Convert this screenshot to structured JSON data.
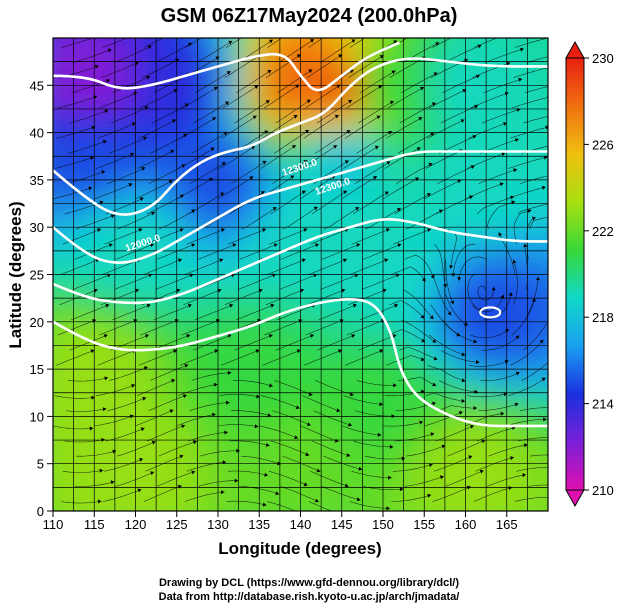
{
  "chart_data": {
    "type": "heatmap",
    "title": "GSM 06Z17May2024 (200.0hPa)",
    "xlabel": "Longitude (degrees)",
    "ylabel": "Latitude  (degrees)",
    "xlim": [
      110,
      170
    ],
    "ylim": [
      0,
      50
    ],
    "x_ticks": [
      110,
      115,
      120,
      125,
      130,
      135,
      140,
      145,
      150,
      155,
      160,
      165
    ],
    "y_ticks": [
      0,
      5,
      10,
      15,
      20,
      25,
      30,
      35,
      40,
      45
    ],
    "grid": true,
    "grid_spacing_degrees": 2.5,
    "colorbar": {
      "min": 210,
      "max": 230,
      "ticks": [
        210,
        214,
        218,
        222,
        226,
        230
      ],
      "colors": [
        "#e010b0",
        "#7a20d8",
        "#1a30e0",
        "#1aa0f0",
        "#10d8c8",
        "#38d838",
        "#a8e010",
        "#f0c010",
        "#f07010",
        "#e82010"
      ]
    },
    "field_samples": [
      {
        "lon": 115,
        "lat": 45,
        "value": 212
      },
      {
        "lon": 125,
        "lat": 45,
        "value": 214
      },
      {
        "lon": 140,
        "lat": 45,
        "value": 228
      },
      {
        "lon": 145,
        "lat": 44,
        "value": 229
      },
      {
        "lon": 150,
        "lat": 45,
        "value": 221
      },
      {
        "lon": 160,
        "lat": 45,
        "value": 219
      },
      {
        "lon": 115,
        "lat": 38,
        "value": 215
      },
      {
        "lon": 130,
        "lat": 35,
        "value": 215
      },
      {
        "lon": 145,
        "lat": 38,
        "value": 218
      },
      {
        "lon": 160,
        "lat": 35,
        "value": 219
      },
      {
        "lon": 120,
        "lat": 28,
        "value": 219
      },
      {
        "lon": 140,
        "lat": 28,
        "value": 219
      },
      {
        "lon": 150,
        "lat": 25,
        "value": 219
      },
      {
        "lon": 163,
        "lat": 21,
        "value": 215
      },
      {
        "lon": 115,
        "lat": 15,
        "value": 223
      },
      {
        "lon": 135,
        "lat": 15,
        "value": 221
      },
      {
        "lon": 150,
        "lat": 12,
        "value": 221
      },
      {
        "lon": 120,
        "lat": 5,
        "value": 223
      },
      {
        "lon": 140,
        "lat": 5,
        "value": 222
      },
      {
        "lon": 160,
        "lat": 5,
        "value": 223
      }
    ],
    "contour_labels": [
      {
        "text": "12000.0",
        "lon": 121,
        "lat": 28
      },
      {
        "text": "12300.0",
        "lon": 140,
        "lat": 36
      },
      {
        "text": "12300.0",
        "lon": 144,
        "lat": 34
      }
    ],
    "contours": [
      {
        "points": [
          [
            110,
            46
          ],
          [
            114,
            46
          ],
          [
            118,
            44.5
          ],
          [
            122,
            45
          ],
          [
            126,
            46
          ],
          [
            130,
            47
          ],
          [
            134,
            48
          ],
          [
            138,
            48.5
          ],
          [
            140,
            46
          ],
          [
            142,
            44
          ],
          [
            145,
            46
          ],
          [
            148,
            48
          ],
          [
            152,
            49.5
          ]
        ]
      },
      {
        "points": [
          [
            110,
            36
          ],
          [
            114,
            33
          ],
          [
            118,
            31
          ],
          [
            122,
            32
          ],
          [
            125,
            35
          ],
          [
            128,
            37
          ],
          [
            131,
            38
          ],
          [
            134,
            38.5
          ],
          [
            137,
            40
          ],
          [
            140,
            41
          ],
          [
            143,
            42
          ],
          [
            146,
            45
          ],
          [
            149,
            47
          ],
          [
            153,
            48
          ],
          [
            158,
            47.5
          ],
          [
            163,
            47
          ],
          [
            170,
            47
          ]
        ]
      },
      {
        "points": [
          [
            110,
            30
          ],
          [
            114,
            27
          ],
          [
            118,
            26
          ],
          [
            122,
            27
          ],
          [
            126,
            29
          ],
          [
            130,
            31
          ],
          [
            134,
            33
          ],
          [
            138,
            34
          ],
          [
            142,
            35
          ],
          [
            146,
            36
          ],
          [
            150,
            37
          ],
          [
            154,
            38
          ],
          [
            158,
            38
          ],
          [
            162,
            38
          ],
          [
            166,
            38
          ],
          [
            170,
            38
          ]
        ]
      },
      {
        "points": [
          [
            110,
            24
          ],
          [
            114,
            22.5
          ],
          [
            118,
            22
          ],
          [
            122,
            22
          ],
          [
            126,
            23
          ],
          [
            130,
            24.5
          ],
          [
            134,
            26
          ],
          [
            138,
            27.5
          ],
          [
            142,
            29
          ],
          [
            146,
            30
          ],
          [
            150,
            31
          ],
          [
            154,
            30.5
          ],
          [
            158,
            29.5
          ],
          [
            162,
            29
          ],
          [
            166,
            28.5
          ],
          [
            170,
            28.5
          ]
        ]
      },
      {
        "points": [
          [
            110,
            20
          ],
          [
            114,
            18
          ],
          [
            118,
            17
          ],
          [
            122,
            17
          ],
          [
            126,
            17.5
          ],
          [
            130,
            18.5
          ],
          [
            134,
            19.5
          ],
          [
            138,
            21
          ],
          [
            142,
            22
          ],
          [
            146,
            22.5
          ],
          [
            149,
            22
          ],
          [
            151,
            19
          ],
          [
            152,
            15
          ],
          [
            154,
            12
          ],
          [
            158,
            10
          ],
          [
            162,
            9
          ],
          [
            166,
            9
          ],
          [
            170,
            9
          ]
        ]
      }
    ],
    "low_center": {
      "lon": 163,
      "lat": 21,
      "value": 215
    }
  }
}
